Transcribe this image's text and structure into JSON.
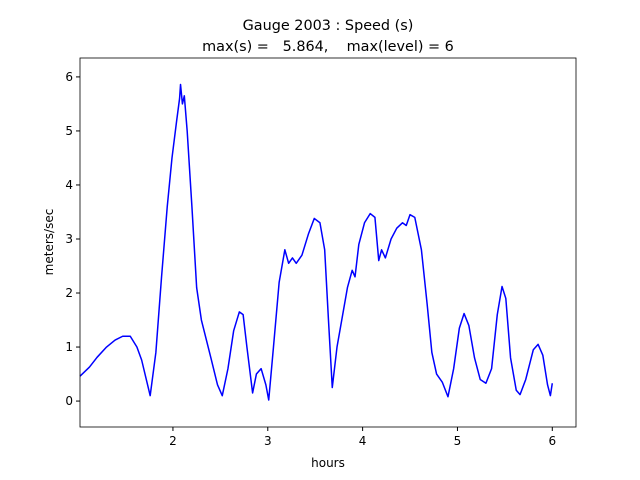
{
  "chart_data": {
    "type": "line",
    "title": "Gauge 2003 : Speed (s)",
    "subtitle": "max(s) =   5.864,    max(level) = 6",
    "xlabel": "hours",
    "ylabel": "meters/sec",
    "xlim": [
      1.02,
      6.25
    ],
    "ylim": [
      -0.48,
      6.35
    ],
    "xticks": [
      2,
      3,
      4,
      5,
      6
    ],
    "yticks": [
      0,
      1,
      2,
      3,
      4,
      5,
      6
    ],
    "grid": false,
    "series": [
      {
        "color": "#0000ff",
        "x": [
          1.02,
          1.12,
          1.2,
          1.3,
          1.39,
          1.47,
          1.55,
          1.62,
          1.67,
          1.76,
          1.82,
          1.88,
          1.94,
          1.99,
          2.04,
          2.07,
          2.08,
          2.1,
          2.12,
          2.15,
          2.2,
          2.25,
          2.3,
          2.4,
          2.47,
          2.52,
          2.58,
          2.64,
          2.7,
          2.74,
          2.78,
          2.84,
          2.88,
          2.93,
          2.98,
          3.01,
          3.06,
          3.12,
          3.18,
          3.22,
          3.26,
          3.3,
          3.36,
          3.43,
          3.49,
          3.55,
          3.6,
          3.64,
          3.68,
          3.73,
          3.79,
          3.84,
          3.89,
          3.92,
          3.96,
          4.02,
          4.08,
          4.13,
          4.17,
          4.2,
          4.24,
          4.3,
          4.36,
          4.42,
          4.46,
          4.5,
          4.55,
          4.62,
          4.68,
          4.73,
          4.78,
          4.84,
          4.9,
          4.96,
          5.02,
          5.07,
          5.12,
          5.18,
          5.24,
          5.3,
          5.36,
          5.42,
          5.47,
          5.51,
          5.56,
          5.62,
          5.66,
          5.72,
          5.8,
          5.85,
          5.9,
          5.95,
          5.98,
          6.0
        ],
        "values": [
          0.46,
          0.63,
          0.81,
          1.0,
          1.13,
          1.2,
          1.2,
          1.0,
          0.76,
          0.1,
          0.9,
          2.3,
          3.6,
          4.5,
          5.2,
          5.6,
          5.86,
          5.5,
          5.65,
          5.0,
          3.6,
          2.1,
          1.5,
          0.8,
          0.3,
          0.1,
          0.6,
          1.3,
          1.65,
          1.6,
          1.0,
          0.15,
          0.5,
          0.6,
          0.3,
          0.02,
          1.0,
          2.2,
          2.8,
          2.55,
          2.65,
          2.55,
          2.7,
          3.1,
          3.38,
          3.3,
          2.8,
          1.5,
          0.25,
          1.0,
          1.6,
          2.1,
          2.42,
          2.3,
          2.9,
          3.3,
          3.47,
          3.4,
          2.6,
          2.8,
          2.65,
          3.0,
          3.2,
          3.3,
          3.25,
          3.45,
          3.4,
          2.8,
          1.8,
          0.9,
          0.5,
          0.35,
          0.08,
          0.6,
          1.35,
          1.62,
          1.4,
          0.8,
          0.4,
          0.33,
          0.6,
          1.6,
          2.12,
          1.9,
          0.8,
          0.2,
          0.12,
          0.4,
          0.95,
          1.05,
          0.85,
          0.3,
          0.1,
          0.33
        ]
      }
    ]
  }
}
